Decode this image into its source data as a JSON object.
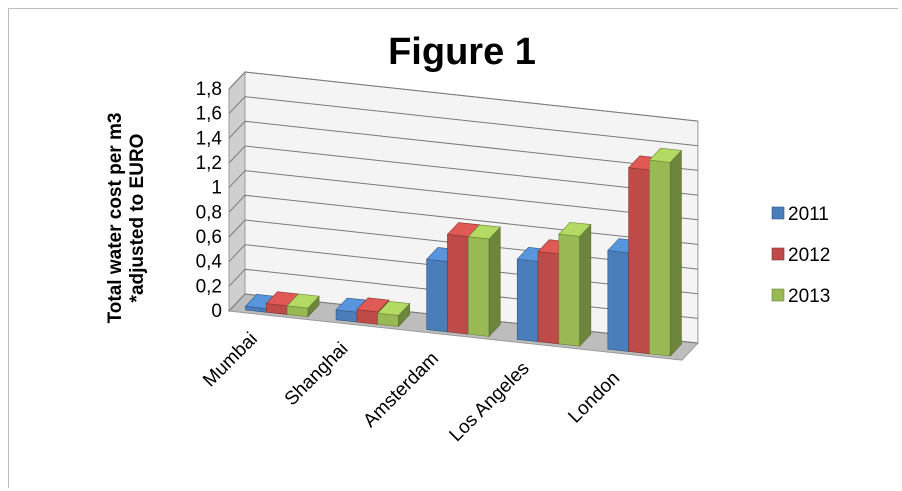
{
  "chart_data": {
    "type": "bar",
    "title": "Figure 1",
    "ylabel_lines": [
      "Total water cost per m3",
      "*adjusted to EURO"
    ],
    "xlabel": "",
    "categories": [
      "Mumbai",
      "Shanghai",
      "Amsterdam",
      "Los Angeles",
      "London"
    ],
    "series": [
      {
        "name": "2011",
        "values": [
          0.03,
          0.08,
          0.57,
          0.65,
          0.8
        ],
        "color": "#4a7ebb"
      },
      {
        "name": "2012",
        "values": [
          0.07,
          0.1,
          0.79,
          0.73,
          1.49
        ],
        "color": "#be4b48"
      },
      {
        "name": "2013",
        "values": [
          0.07,
          0.09,
          0.79,
          0.89,
          1.57
        ],
        "color": "#98b954"
      }
    ],
    "ylim": [
      0,
      1.8
    ],
    "y_ticks": [
      "0",
      "0,2",
      "0,4",
      "0,6",
      "0,8",
      "1",
      "1,2",
      "1,4",
      "1,6",
      "1,8"
    ],
    "grid": true,
    "legend_position": "right",
    "style": "3d-clustered-column"
  }
}
